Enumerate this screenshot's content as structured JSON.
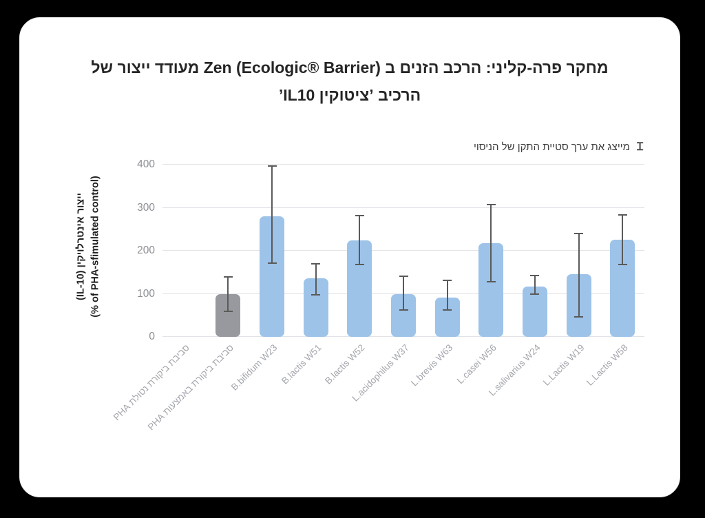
{
  "background": {
    "outer": "#000000",
    "card": "#ffffff"
  },
  "title": {
    "line1": "מחקר פרה-קליני: הרכב הזנים ב Zen (Ecologic® Barrier) מעודד ייצור של",
    "line2": "הרכיב ’ציטוקין IL10’"
  },
  "legend_note": {
    "symbol": "Ɪ",
    "text": "מייצג את ערך סטיית התקן של הניסוי"
  },
  "chart_data": {
    "type": "bar",
    "title": "מחקר פרה-קליני: הרכב הזנים ב Zen (Ecologic® Barrier) מעודד ייצור של הרכיב ’ציטוקין IL10’",
    "ylabel_line1": "ייצור אינטרלויקין (IL-10)",
    "ylabel_line2": "(% of PHA-sfimulated control)",
    "xlabel": "",
    "ylim": [
      0,
      400
    ],
    "yticks": [
      0,
      100,
      200,
      300,
      400
    ],
    "grid": true,
    "legend_position": "top-right",
    "categories": [
      "סביבת ביקורת נטולת PHA",
      "סביבת ביקורת באמצעות PHA",
      "B.bifidum W23",
      "B.lactis W51",
      "B.lactis W52",
      "L.acidophilus W37",
      "L.brevis W63",
      "L.casei W56",
      "L.salivarius W24",
      "L.Lactis W19",
      "L.Lactis W58"
    ],
    "values": [
      0,
      100,
      280,
      136,
      224,
      100,
      91,
      218,
      117,
      145,
      225
    ],
    "error_low": [
      null,
      60,
      172,
      97,
      168,
      62,
      62,
      128,
      99,
      47,
      168
    ],
    "error_high": [
      null,
      140,
      397,
      170,
      282,
      141,
      131,
      307,
      142,
      240,
      283
    ],
    "bar_colors": [
      "none",
      "#97999E",
      "#9DC3E9",
      "#9DC3E9",
      "#9DC3E9",
      "#9DC3E9",
      "#9DC3E9",
      "#9DC3E9",
      "#9DC3E9",
      "#9DC3E9",
      "#9DC3E9"
    ],
    "error_color": "#5a5a5a",
    "grid_color": "#e3e3e7"
  }
}
